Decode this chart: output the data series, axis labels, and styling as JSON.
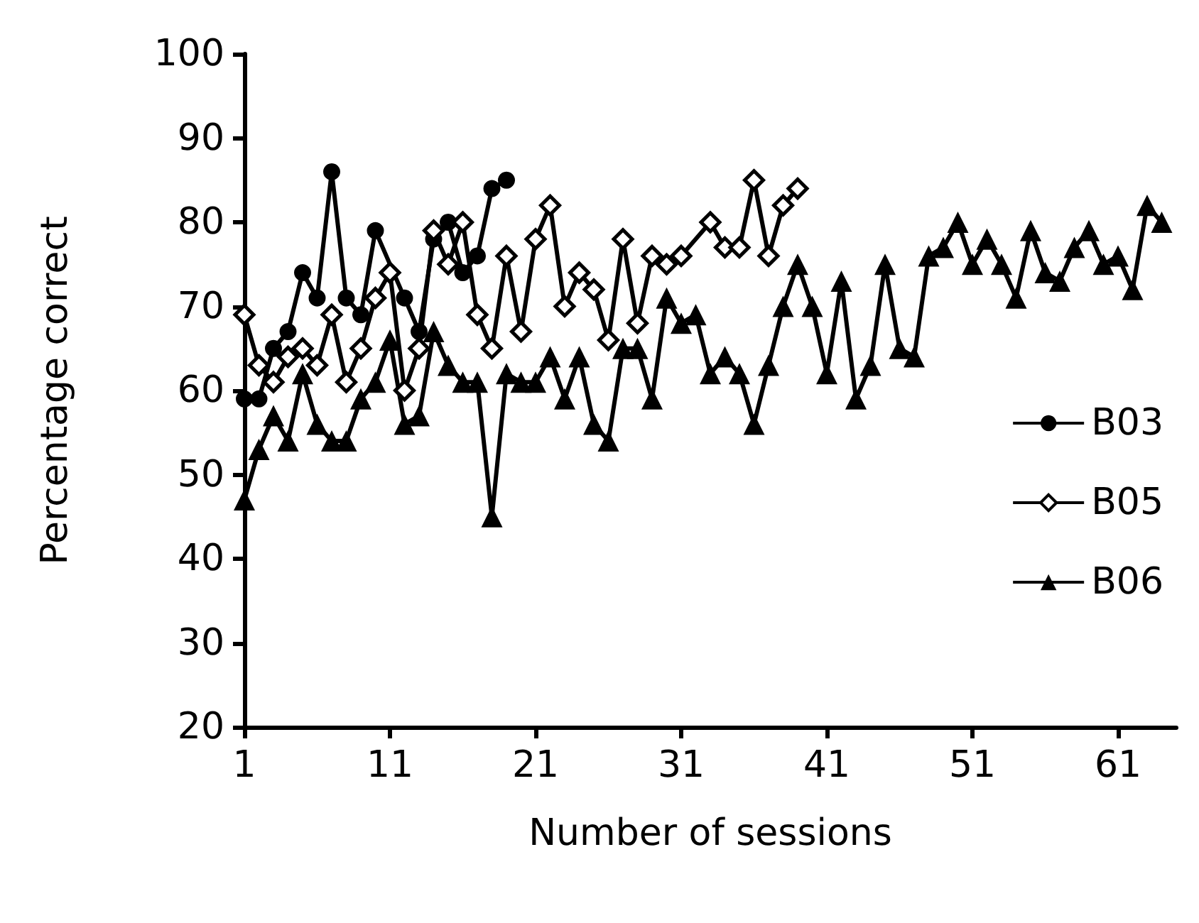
{
  "chart_data": {
    "type": "line",
    "xlabel": "Number of sessions",
    "ylabel": "Percentage correct",
    "xlim": [
      1,
      65
    ],
    "xticks": [
      1,
      11,
      21,
      31,
      41,
      51,
      61
    ],
    "ylim": [
      20,
      100
    ],
    "yticks": [
      20,
      30,
      40,
      50,
      60,
      70,
      80,
      90,
      100
    ],
    "grid": false,
    "legend": "right",
    "line_style": "solid",
    "series": [
      {
        "name": "B03",
        "color": "#000000",
        "marker": "circle",
        "x": [
          1,
          2,
          3,
          4,
          5,
          6,
          7,
          8,
          9,
          10,
          11,
          12,
          13,
          14,
          15,
          16,
          17,
          18,
          19
        ],
        "values": [
          59,
          59,
          65,
          67,
          74,
          71,
          86,
          71,
          69,
          79,
          null,
          71,
          67,
          78,
          80,
          74,
          76,
          84,
          85
        ]
      },
      {
        "name": "B05",
        "color": "#000000",
        "marker": "diamond",
        "x": [
          1,
          2,
          3,
          4,
          5,
          6,
          7,
          8,
          9,
          10,
          11,
          12,
          13,
          14,
          15,
          16,
          17,
          18,
          19,
          20,
          21,
          22,
          23,
          24,
          25,
          26,
          27,
          28,
          29,
          30,
          31,
          32,
          33,
          34,
          35,
          36,
          37,
          38,
          39
        ],
        "values": [
          69,
          63,
          61,
          64,
          65,
          63,
          69,
          61,
          65,
          71,
          74,
          60,
          65,
          79,
          75,
          80,
          69,
          65,
          76,
          67,
          78,
          82,
          70,
          74,
          72,
          66,
          78,
          68,
          76,
          75,
          76,
          null,
          80,
          77,
          77,
          85,
          76,
          82,
          84
        ]
      },
      {
        "name": "B06",
        "color": "#000000",
        "marker": "triangle",
        "x": [
          1,
          2,
          3,
          4,
          5,
          6,
          7,
          8,
          9,
          10,
          11,
          12,
          13,
          14,
          15,
          16,
          17,
          18,
          19,
          20,
          21,
          22,
          23,
          24,
          25,
          26,
          27,
          28,
          29,
          30,
          31,
          32,
          33,
          34,
          35,
          36,
          37,
          38,
          39,
          40,
          41,
          42,
          43,
          44,
          45,
          46,
          47,
          48,
          49,
          50,
          51,
          52,
          53,
          54,
          55,
          56,
          57,
          58,
          59,
          60,
          61,
          62,
          63,
          64
        ],
        "values": [
          47,
          53,
          57,
          54,
          62,
          56,
          54,
          54,
          59,
          61,
          66,
          56,
          57,
          67,
          63,
          61,
          61,
          45,
          62,
          61,
          61,
          64,
          59,
          64,
          56,
          54,
          65,
          65,
          59,
          71,
          68,
          69,
          62,
          64,
          62,
          56,
          63,
          70,
          75,
          70,
          62,
          73,
          59,
          63,
          75,
          65,
          64,
          76,
          77,
          80,
          75,
          78,
          75,
          71,
          79,
          74,
          73,
          77,
          79,
          75,
          76,
          72,
          82,
          80
        ]
      }
    ]
  }
}
